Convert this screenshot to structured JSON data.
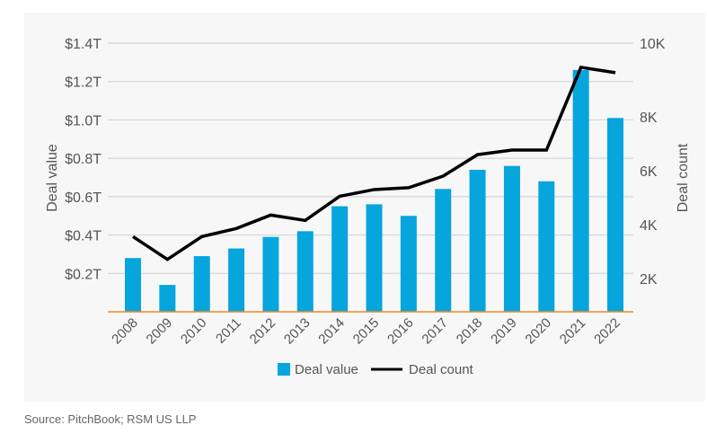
{
  "chart_data": {
    "type": "bar",
    "categories": [
      "2008",
      "2009",
      "2010",
      "2011",
      "2012",
      "2013",
      "2014",
      "2015",
      "2016",
      "2017",
      "2018",
      "2019",
      "2020",
      "2021",
      "2022"
    ],
    "series": [
      {
        "name": "Deal value",
        "type": "bar",
        "axis": "left",
        "unit": "$T",
        "color": "#06a5de",
        "values": [
          0.28,
          0.14,
          0.29,
          0.33,
          0.39,
          0.42,
          0.55,
          0.56,
          0.5,
          0.64,
          0.74,
          0.76,
          0.68,
          1.26,
          1.01
        ]
      },
      {
        "name": "Deal count",
        "type": "line",
        "axis": "right",
        "color": "#000000",
        "values": [
          2800,
          1950,
          2800,
          3100,
          3600,
          3400,
          4300,
          4550,
          4620,
          5050,
          5850,
          6020,
          6020,
          9100,
          8900
        ]
      }
    ],
    "y_left": {
      "label": "Deal value",
      "range": [
        0,
        1.4
      ],
      "ticks": [
        0.2,
        0.4,
        0.6,
        0.8,
        1.0,
        1.2,
        1.4
      ],
      "tick_labels": [
        "$0.2T",
        "$0.4T",
        "$0.6T",
        "$0.8T",
        "$1.0T",
        "$1.2T",
        "$1.4T"
      ]
    },
    "y_right": {
      "label": "Deal count",
      "range": [
        0,
        10000
      ],
      "tick_labels": [
        "2K",
        "4K",
        "6K",
        "8K",
        "10K"
      ]
    },
    "grid": true,
    "legend": {
      "placement": "bottom",
      "entries": [
        "Deal value",
        "Deal count"
      ]
    },
    "baseline_color": "#f08a24"
  },
  "source": "Source: PitchBook; RSM US LLP"
}
